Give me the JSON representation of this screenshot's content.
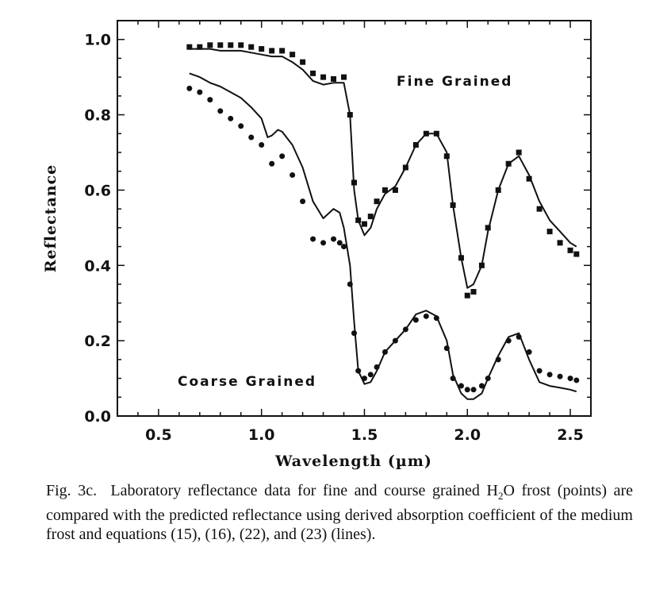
{
  "chart_data": {
    "type": "line",
    "title": "",
    "xlabel": "Wavelength (µm)",
    "ylabel": "Reflectance",
    "xlim": [
      0.3,
      2.6
    ],
    "ylim": [
      0.0,
      1.05
    ],
    "xticks": [
      "0.5",
      "1.0",
      "1.5",
      "2.0",
      "2.5"
    ],
    "yticks": [
      "0.0",
      "0.2",
      "0.4",
      "0.6",
      "0.8",
      "1.0"
    ],
    "grid": false,
    "annotations": [
      "Fine Grained",
      "Coarse Grained"
    ],
    "series": [
      {
        "group": "Fine Grained",
        "kind": "points",
        "x": [
          0.65,
          0.7,
          0.75,
          0.8,
          0.85,
          0.9,
          0.95,
          1.0,
          1.05,
          1.1,
          1.15,
          1.2,
          1.25,
          1.3,
          1.35,
          1.4,
          1.43,
          1.45,
          1.47,
          1.5,
          1.53,
          1.56,
          1.6,
          1.65,
          1.7,
          1.75,
          1.8,
          1.85,
          1.9,
          1.93,
          1.97,
          2.0,
          2.03,
          2.07,
          2.1,
          2.15,
          2.2,
          2.25,
          2.3,
          2.35,
          2.4,
          2.45,
          2.5,
          2.53
        ],
        "y": [
          0.98,
          0.98,
          0.985,
          0.985,
          0.985,
          0.985,
          0.98,
          0.975,
          0.97,
          0.97,
          0.96,
          0.94,
          0.91,
          0.9,
          0.895,
          0.9,
          0.8,
          0.62,
          0.52,
          0.51,
          0.53,
          0.57,
          0.6,
          0.6,
          0.66,
          0.72,
          0.75,
          0.75,
          0.69,
          0.56,
          0.42,
          0.32,
          0.33,
          0.4,
          0.5,
          0.6,
          0.67,
          0.7,
          0.63,
          0.55,
          0.49,
          0.46,
          0.44,
          0.43
        ]
      },
      {
        "group": "Fine Grained",
        "kind": "line",
        "x": [
          0.65,
          0.7,
          0.75,
          0.8,
          0.85,
          0.9,
          0.95,
          1.0,
          1.05,
          1.1,
          1.15,
          1.2,
          1.25,
          1.3,
          1.35,
          1.4,
          1.43,
          1.45,
          1.47,
          1.5,
          1.53,
          1.56,
          1.6,
          1.65,
          1.7,
          1.75,
          1.8,
          1.85,
          1.9,
          1.93,
          1.97,
          2.0,
          2.03,
          2.07,
          2.1,
          2.15,
          2.2,
          2.25,
          2.3,
          2.35,
          2.4,
          2.45,
          2.5,
          2.53
        ],
        "y": [
          0.975,
          0.975,
          0.975,
          0.97,
          0.97,
          0.97,
          0.965,
          0.96,
          0.955,
          0.955,
          0.94,
          0.92,
          0.89,
          0.88,
          0.885,
          0.885,
          0.8,
          0.6,
          0.52,
          0.48,
          0.5,
          0.55,
          0.59,
          0.61,
          0.66,
          0.72,
          0.75,
          0.75,
          0.7,
          0.56,
          0.42,
          0.34,
          0.35,
          0.4,
          0.49,
          0.6,
          0.67,
          0.69,
          0.64,
          0.57,
          0.52,
          0.49,
          0.46,
          0.45
        ]
      },
      {
        "group": "Coarse Grained",
        "kind": "points",
        "x": [
          0.65,
          0.7,
          0.75,
          0.8,
          0.85,
          0.9,
          0.95,
          1.0,
          1.05,
          1.1,
          1.15,
          1.2,
          1.25,
          1.3,
          1.35,
          1.38,
          1.4,
          1.43,
          1.45,
          1.47,
          1.5,
          1.53,
          1.56,
          1.6,
          1.65,
          1.7,
          1.75,
          1.8,
          1.85,
          1.9,
          1.93,
          1.97,
          2.0,
          2.03,
          2.07,
          2.1,
          2.15,
          2.2,
          2.25,
          2.3,
          2.35,
          2.4,
          2.45,
          2.5,
          2.53
        ],
        "y": [
          0.87,
          0.86,
          0.84,
          0.81,
          0.79,
          0.77,
          0.74,
          0.72,
          0.67,
          0.69,
          0.64,
          0.57,
          0.47,
          0.46,
          0.47,
          0.46,
          0.45,
          0.35,
          0.22,
          0.12,
          0.1,
          0.11,
          0.13,
          0.17,
          0.2,
          0.23,
          0.255,
          0.265,
          0.26,
          0.18,
          0.1,
          0.08,
          0.07,
          0.07,
          0.08,
          0.1,
          0.15,
          0.2,
          0.21,
          0.17,
          0.12,
          0.11,
          0.105,
          0.1,
          0.095
        ]
      },
      {
        "group": "Coarse Grained",
        "kind": "line",
        "x": [
          0.65,
          0.7,
          0.75,
          0.8,
          0.85,
          0.9,
          0.95,
          1.0,
          1.03,
          1.05,
          1.08,
          1.1,
          1.15,
          1.2,
          1.25,
          1.3,
          1.35,
          1.38,
          1.4,
          1.43,
          1.45,
          1.47,
          1.5,
          1.53,
          1.56,
          1.6,
          1.65,
          1.7,
          1.75,
          1.8,
          1.85,
          1.9,
          1.93,
          1.97,
          2.0,
          2.03,
          2.07,
          2.1,
          2.15,
          2.2,
          2.25,
          2.3,
          2.35,
          2.4,
          2.45,
          2.5,
          2.53
        ],
        "y": [
          0.91,
          0.9,
          0.885,
          0.875,
          0.86,
          0.845,
          0.82,
          0.79,
          0.74,
          0.745,
          0.76,
          0.755,
          0.72,
          0.66,
          0.57,
          0.525,
          0.55,
          0.54,
          0.5,
          0.4,
          0.25,
          0.12,
          0.085,
          0.09,
          0.12,
          0.17,
          0.2,
          0.23,
          0.27,
          0.28,
          0.265,
          0.2,
          0.11,
          0.06,
          0.045,
          0.045,
          0.06,
          0.1,
          0.16,
          0.21,
          0.22,
          0.15,
          0.09,
          0.08,
          0.075,
          0.07,
          0.065
        ]
      }
    ]
  },
  "caption": {
    "label": "Fig. 3c.",
    "text_before_sub": "Laboratory reflectance data for fine and course grained H",
    "subscript": "2",
    "text_after_sub": "O frost (points) are compared with the predicted reflectance using derived absorption coefficient of the medium frost and equations (15), (16), (22), and (23) (lines)."
  }
}
